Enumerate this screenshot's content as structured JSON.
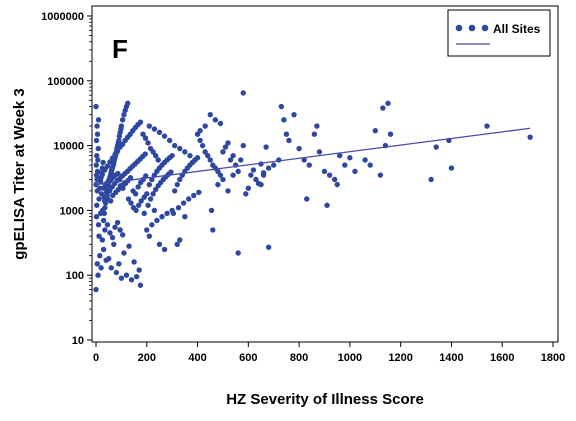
{
  "chart_data": {
    "type": "scatter",
    "panel_label": "F",
    "title": "",
    "xlabel": "HZ Severity of Illness Score",
    "ylabel": "gpELISA Titer at Week 3",
    "xlim": [
      -5,
      1800
    ],
    "ylim": [
      10,
      1000000
    ],
    "y_scale": "log",
    "x_ticks": [
      0,
      200,
      400,
      600,
      800,
      1000,
      1200,
      1400,
      1600,
      1800
    ],
    "y_ticks": [
      10,
      100,
      1000,
      10000,
      100000,
      1000000
    ],
    "grid": false,
    "legend_position": "top-right",
    "colors": {
      "points": "#2e47a0",
      "line": "#4a4aa8"
    },
    "series": [
      {
        "name": "All Sites",
        "points": [
          [
            0,
            60
          ],
          [
            5,
            150
          ],
          [
            8,
            100
          ],
          [
            2,
            800
          ],
          [
            3,
            1200
          ],
          [
            5,
            2000
          ],
          [
            0,
            2500
          ],
          [
            4,
            3000
          ],
          [
            2,
            3500
          ],
          [
            6,
            4000
          ],
          [
            1,
            5000
          ],
          [
            7,
            6000
          ],
          [
            3,
            7000
          ],
          [
            9,
            9000
          ],
          [
            2,
            12000
          ],
          [
            6,
            15000
          ],
          [
            4,
            20000
          ],
          [
            0,
            40000
          ],
          [
            10,
            25000
          ],
          [
            12,
            1500
          ],
          [
            15,
            2200
          ],
          [
            18,
            2800
          ],
          [
            20,
            3200
          ],
          [
            22,
            3800
          ],
          [
            25,
            4500
          ],
          [
            28,
            5500
          ],
          [
            30,
            700
          ],
          [
            33,
            900
          ],
          [
            35,
            1100
          ],
          [
            38,
            1300
          ],
          [
            40,
            1600
          ],
          [
            42,
            1900
          ],
          [
            45,
            2100
          ],
          [
            48,
            2400
          ],
          [
            50,
            2700
          ],
          [
            52,
            3000
          ],
          [
            55,
            3300
          ],
          [
            58,
            3600
          ],
          [
            60,
            3900
          ],
          [
            62,
            4200
          ],
          [
            65,
            4600
          ],
          [
            68,
            5000
          ],
          [
            70,
            5400
          ],
          [
            72,
            6000
          ],
          [
            75,
            6500
          ],
          [
            78,
            7200
          ],
          [
            80,
            8000
          ],
          [
            82,
            9000
          ],
          [
            85,
            10000
          ],
          [
            88,
            11000
          ],
          [
            90,
            12000
          ],
          [
            92,
            14000
          ],
          [
            95,
            16000
          ],
          [
            98,
            18000
          ],
          [
            100,
            20000
          ],
          [
            105,
            25000
          ],
          [
            110,
            30000
          ],
          [
            115,
            35000
          ],
          [
            120,
            40000
          ],
          [
            125,
            45000
          ],
          [
            12,
            400
          ],
          [
            25,
            350
          ],
          [
            35,
            500
          ],
          [
            45,
            600
          ],
          [
            55,
            450
          ],
          [
            65,
            380
          ],
          [
            75,
            550
          ],
          [
            85,
            650
          ],
          [
            95,
            500
          ],
          [
            105,
            420
          ],
          [
            15,
            200
          ],
          [
            30,
            250
          ],
          [
            50,
            180
          ],
          [
            70,
            300
          ],
          [
            90,
            150
          ],
          [
            110,
            220
          ],
          [
            130,
            280
          ],
          [
            150,
            160
          ],
          [
            170,
            120
          ],
          [
            60,
            130
          ],
          [
            80,
            110
          ],
          [
            100,
            90
          ],
          [
            120,
            100
          ],
          [
            140,
            85
          ],
          [
            160,
            95
          ],
          [
            175,
            70
          ],
          [
            40,
            170
          ],
          [
            20,
            130
          ],
          [
            10,
            600
          ],
          [
            18,
            900
          ],
          [
            26,
            1000
          ],
          [
            34,
            1400
          ],
          [
            44,
            1700
          ],
          [
            54,
            2000
          ],
          [
            64,
            2300
          ],
          [
            74,
            2600
          ],
          [
            84,
            2900
          ],
          [
            94,
            3100
          ],
          [
            104,
            3400
          ],
          [
            114,
            3700
          ],
          [
            124,
            4000
          ],
          [
            134,
            4400
          ],
          [
            144,
            4800
          ],
          [
            154,
            5200
          ],
          [
            164,
            5700
          ],
          [
            174,
            6200
          ],
          [
            184,
            6800
          ],
          [
            194,
            7400
          ],
          [
            30,
            2200
          ],
          [
            36,
            2500
          ],
          [
            42,
            2600
          ],
          [
            48,
            2800
          ],
          [
            56,
            2900
          ],
          [
            62,
            3100
          ],
          [
            68,
            3300
          ],
          [
            76,
            3500
          ],
          [
            86,
            3700
          ],
          [
            96,
            2400
          ],
          [
            106,
            2200
          ],
          [
            116,
            2600
          ],
          [
            126,
            2900
          ],
          [
            136,
            3200
          ],
          [
            146,
            2000
          ],
          [
            156,
            1800
          ],
          [
            166,
            2300
          ],
          [
            176,
            2700
          ],
          [
            186,
            3000
          ],
          [
            196,
            3400
          ],
          [
            22,
            1800
          ],
          [
            32,
            1600
          ],
          [
            46,
            1500
          ],
          [
            58,
            1400
          ],
          [
            66,
            1700
          ],
          [
            78,
            1900
          ],
          [
            88,
            2100
          ],
          [
            98,
            2300
          ],
          [
            108,
            2500
          ],
          [
            118,
            2700
          ],
          [
            128,
            1500
          ],
          [
            138,
            1300
          ],
          [
            148,
            1100
          ],
          [
            158,
            1000
          ],
          [
            168,
            1200
          ],
          [
            178,
            1400
          ],
          [
            190,
            1600
          ],
          [
            200,
            1800
          ],
          [
            15,
            3000
          ],
          [
            25,
            3600
          ],
          [
            35,
            4200
          ],
          [
            45,
            4800
          ],
          [
            55,
            5600
          ],
          [
            65,
            6400
          ],
          [
            75,
            7300
          ],
          [
            85,
            8200
          ],
          [
            95,
            9500
          ],
          [
            105,
            10500
          ],
          [
            115,
            12000
          ],
          [
            125,
            13500
          ],
          [
            135,
            15000
          ],
          [
            145,
            17000
          ],
          [
            155,
            19000
          ],
          [
            165,
            21000
          ],
          [
            175,
            23000
          ],
          [
            185,
            15000
          ],
          [
            195,
            13000
          ],
          [
            205,
            11000
          ],
          [
            215,
            9000
          ],
          [
            225,
            8000
          ],
          [
            235,
            7000
          ],
          [
            245,
            6000
          ],
          [
            210,
            2500
          ],
          [
            220,
            3000
          ],
          [
            230,
            3500
          ],
          [
            240,
            4000
          ],
          [
            250,
            4500
          ],
          [
            260,
            5000
          ],
          [
            270,
            5500
          ],
          [
            280,
            6000
          ],
          [
            290,
            6500
          ],
          [
            300,
            7000
          ],
          [
            205,
            1200
          ],
          [
            215,
            1500
          ],
          [
            225,
            1800
          ],
          [
            235,
            2100
          ],
          [
            245,
            2400
          ],
          [
            255,
            2700
          ],
          [
            265,
            3000
          ],
          [
            275,
            3300
          ],
          [
            285,
            3600
          ],
          [
            295,
            3900
          ],
          [
            210,
            20000
          ],
          [
            230,
            18000
          ],
          [
            250,
            16000
          ],
          [
            270,
            14000
          ],
          [
            290,
            12000
          ],
          [
            310,
            10000
          ],
          [
            330,
            9000
          ],
          [
            350,
            8000
          ],
          [
            370,
            7000
          ],
          [
            390,
            6000
          ],
          [
            310,
            2000
          ],
          [
            320,
            2500
          ],
          [
            330,
            3000
          ],
          [
            340,
            3500
          ],
          [
            350,
            4000
          ],
          [
            360,
            4500
          ],
          [
            370,
            5000
          ],
          [
            380,
            5500
          ],
          [
            390,
            6000
          ],
          [
            400,
            6500
          ],
          [
            305,
            900
          ],
          [
            325,
            1100
          ],
          [
            345,
            1300
          ],
          [
            365,
            1500
          ],
          [
            385,
            1700
          ],
          [
            405,
            1900
          ],
          [
            220,
            600
          ],
          [
            240,
            700
          ],
          [
            260,
            800
          ],
          [
            280,
            900
          ],
          [
            300,
            1000
          ],
          [
            200,
            500
          ],
          [
            210,
            400
          ],
          [
            320,
            300
          ],
          [
            330,
            350
          ],
          [
            350,
            800
          ],
          [
            250,
            300
          ],
          [
            270,
            250
          ],
          [
            230,
            1000
          ],
          [
            190,
            900
          ],
          [
            400,
            15000
          ],
          [
            410,
            12000
          ],
          [
            420,
            10000
          ],
          [
            430,
            8000
          ],
          [
            440,
            7000
          ],
          [
            450,
            6000
          ],
          [
            460,
            5000
          ],
          [
            470,
            4500
          ],
          [
            480,
            4000
          ],
          [
            490,
            3500
          ],
          [
            410,
            17000
          ],
          [
            430,
            20000
          ],
          [
            450,
            30000
          ],
          [
            470,
            25000
          ],
          [
            490,
            22000
          ],
          [
            500,
            8000
          ],
          [
            510,
            9500
          ],
          [
            520,
            11000
          ],
          [
            530,
            6000
          ],
          [
            540,
            7000
          ],
          [
            455,
            1000
          ],
          [
            460,
            500
          ],
          [
            480,
            2500
          ],
          [
            500,
            3000
          ],
          [
            520,
            2000
          ],
          [
            540,
            3500
          ],
          [
            550,
            5000
          ],
          [
            560,
            4000
          ],
          [
            570,
            6000
          ],
          [
            580,
            10000
          ],
          [
            560,
            220
          ],
          [
            590,
            1800
          ],
          [
            600,
            2200
          ],
          [
            610,
            3500
          ],
          [
            620,
            4200
          ],
          [
            630,
            3000
          ],
          [
            640,
            2600
          ],
          [
            650,
            5200
          ],
          [
            660,
            3800
          ],
          [
            670,
            9500
          ],
          [
            580,
            65000
          ],
          [
            650,
            2500
          ],
          [
            660,
            3500
          ],
          [
            680,
            4500
          ],
          [
            680,
            270
          ],
          [
            700,
            5000
          ],
          [
            720,
            6000
          ],
          [
            730,
            40000
          ],
          [
            740,
            25000
          ],
          [
            750,
            15000
          ],
          [
            760,
            12000
          ],
          [
            780,
            30000
          ],
          [
            800,
            9000
          ],
          [
            820,
            6000
          ],
          [
            830,
            1500
          ],
          [
            840,
            5000
          ],
          [
            860,
            15000
          ],
          [
            870,
            20000
          ],
          [
            880,
            8000
          ],
          [
            900,
            4000
          ],
          [
            920,
            3500
          ],
          [
            940,
            3000
          ],
          [
            950,
            2500
          ],
          [
            960,
            7000
          ],
          [
            980,
            5000
          ],
          [
            1000,
            6500
          ],
          [
            1020,
            4000
          ],
          [
            1060,
            6000
          ],
          [
            1080,
            5000
          ],
          [
            1100,
            17000
          ],
          [
            910,
            1200
          ],
          [
            1120,
            3500
          ],
          [
            1130,
            38000
          ],
          [
            1140,
            10000
          ],
          [
            1150,
            45000
          ],
          [
            1160,
            15000
          ],
          [
            1320,
            3000
          ],
          [
            1340,
            9500
          ],
          [
            1390,
            12000
          ],
          [
            1400,
            4500
          ],
          [
            1540,
            20000
          ],
          [
            1710,
            13500
          ]
        ],
        "trend_line": {
          "x": [
            0,
            1710
          ],
          "y": [
            2500,
            18500
          ]
        }
      }
    ]
  }
}
